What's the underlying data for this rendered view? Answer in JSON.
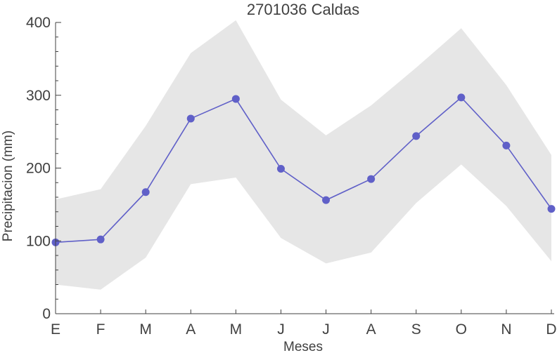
{
  "chart_data": {
    "type": "line",
    "title": "2701036 Caldas",
    "xlabel": "Meses",
    "ylabel": "Precipitacion (mm)",
    "categories": [
      "E",
      "F",
      "M",
      "A",
      "M",
      "J",
      "J",
      "A",
      "S",
      "O",
      "N",
      "D"
    ],
    "ylim": [
      0,
      400
    ],
    "yticks": [
      0,
      100,
      200,
      300,
      400
    ],
    "series": [
      {
        "values": [
          98,
          102,
          167,
          268,
          295,
          199,
          156,
          185,
          244,
          297,
          231,
          144
        ]
      }
    ],
    "band": {
      "upper": [
        157,
        171,
        258,
        358,
        403,
        294,
        245,
        286,
        338,
        392,
        314,
        218
      ],
      "lower": [
        40,
        33,
        77,
        178,
        187,
        104,
        69,
        84,
        152,
        205,
        148,
        72
      ]
    },
    "colors": {
      "line": "#6060c8",
      "band": "#e6e6e6",
      "axis": "#404040"
    },
    "grid": false,
    "legend": "none"
  }
}
